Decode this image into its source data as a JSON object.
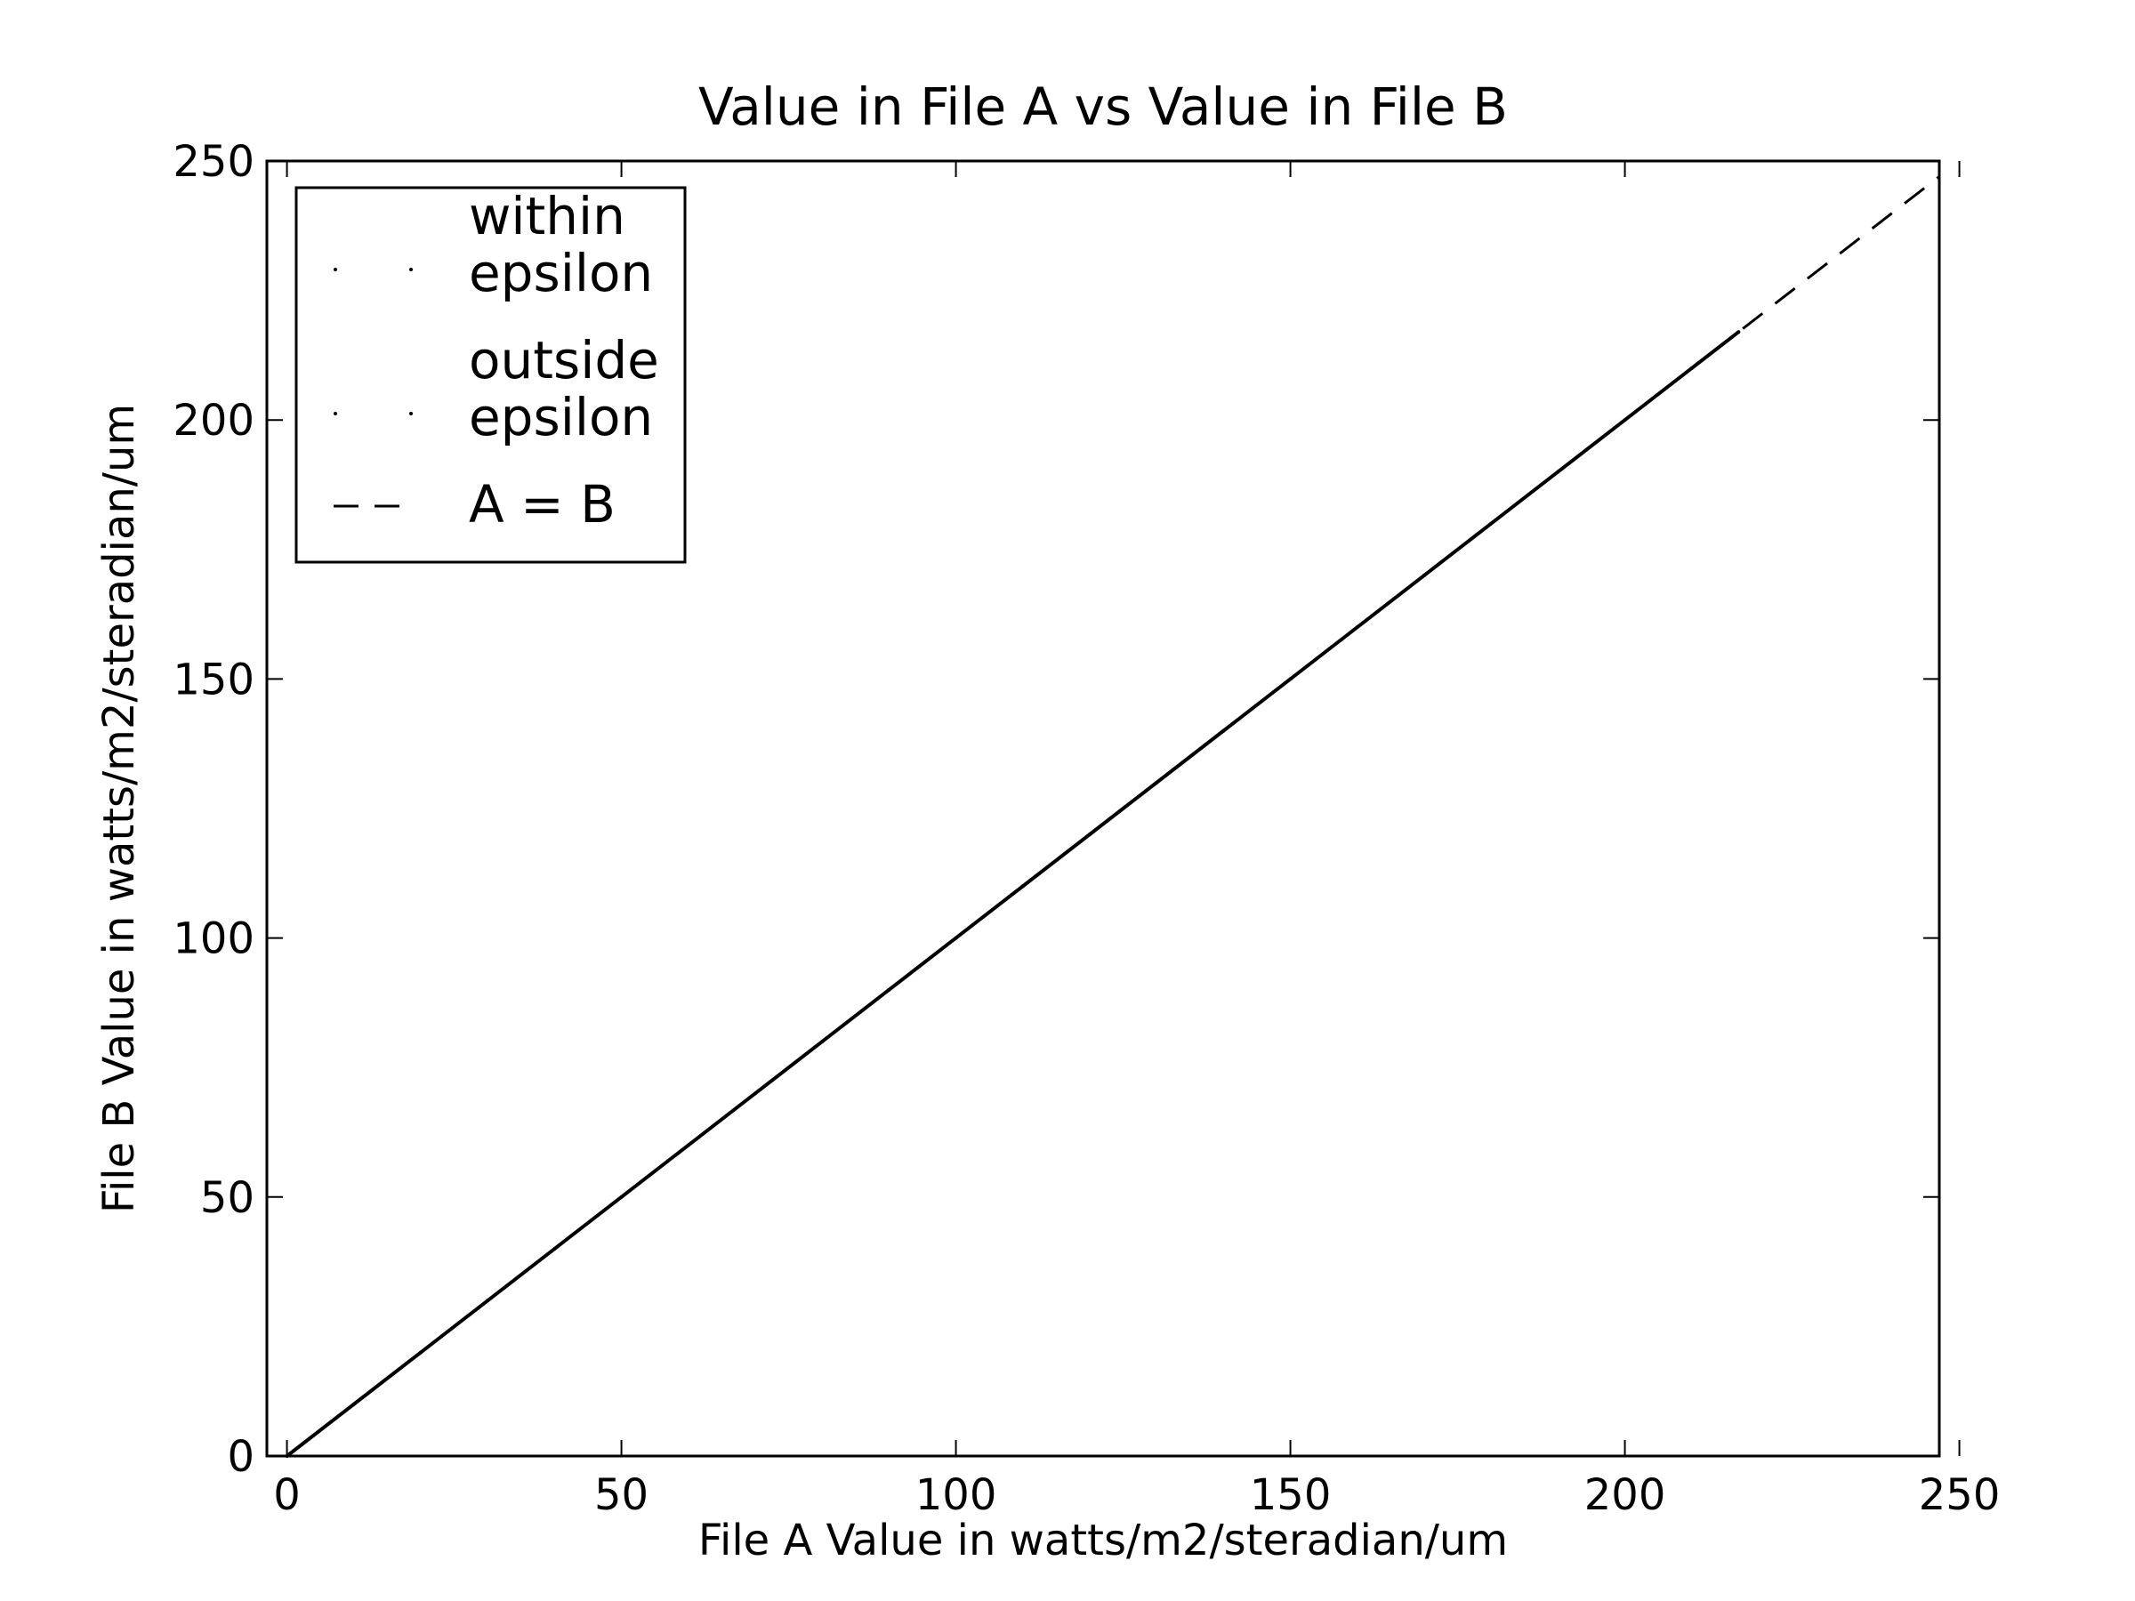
{
  "chart_data": {
    "type": "scatter",
    "title": "Value in File A vs Value in File B",
    "xlabel": "File A Value in watts/m2/steradian/um",
    "ylabel": "File B Value in watts/m2/steradian/um",
    "xlim": [
      -3,
      247
    ],
    "ylim": [
      0,
      250
    ],
    "xticks": [
      0,
      50,
      100,
      150,
      200,
      250
    ],
    "yticks": [
      0,
      50,
      100,
      150,
      200,
      250
    ],
    "grid": false,
    "legend_position": "top-left",
    "series": [
      {
        "name": "within\nepsilon",
        "marker": "point",
        "color": "#000000",
        "x": [
          0,
          10,
          20,
          30,
          40,
          50,
          60,
          70,
          80,
          90,
          100,
          110,
          120,
          130,
          140,
          150,
          160,
          170,
          180,
          190,
          200,
          210,
          217
        ],
        "y": [
          0,
          10,
          20,
          30,
          40,
          50,
          60,
          70,
          80,
          90,
          100,
          110,
          120,
          130,
          140,
          150,
          160,
          170,
          180,
          190,
          200,
          210,
          217
        ]
      },
      {
        "name": "outside\nepsilon",
        "marker": "point",
        "color": "#000000",
        "x": [],
        "y": []
      },
      {
        "name": "A = B",
        "style": "dashed-line",
        "color": "#000000",
        "x": [
          0,
          247
        ],
        "y": [
          0,
          247
        ]
      }
    ]
  }
}
